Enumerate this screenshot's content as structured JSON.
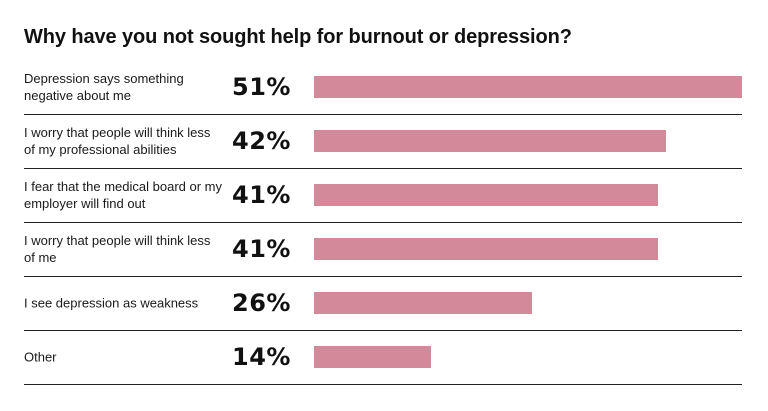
{
  "chart_data": {
    "type": "bar",
    "orientation": "horizontal",
    "title": "Why have you not sought help for burnout or depression?",
    "categories": [
      "Depression says something negative about me",
      "I worry that people will think less of my professional abilities",
      "I fear that the medical board or my employer will find out",
      "I worry that people will think less of me",
      "I see depression as weakness",
      "Other"
    ],
    "value_labels": [
      "51%",
      "42%",
      "41%",
      "41%",
      "26%",
      "14%"
    ],
    "values": [
      51,
      42,
      41,
      41,
      26,
      14
    ],
    "unit": "%",
    "xlim": [
      0,
      51
    ],
    "bar_color": "#d4899a",
    "grid": false,
    "legend": "none"
  }
}
